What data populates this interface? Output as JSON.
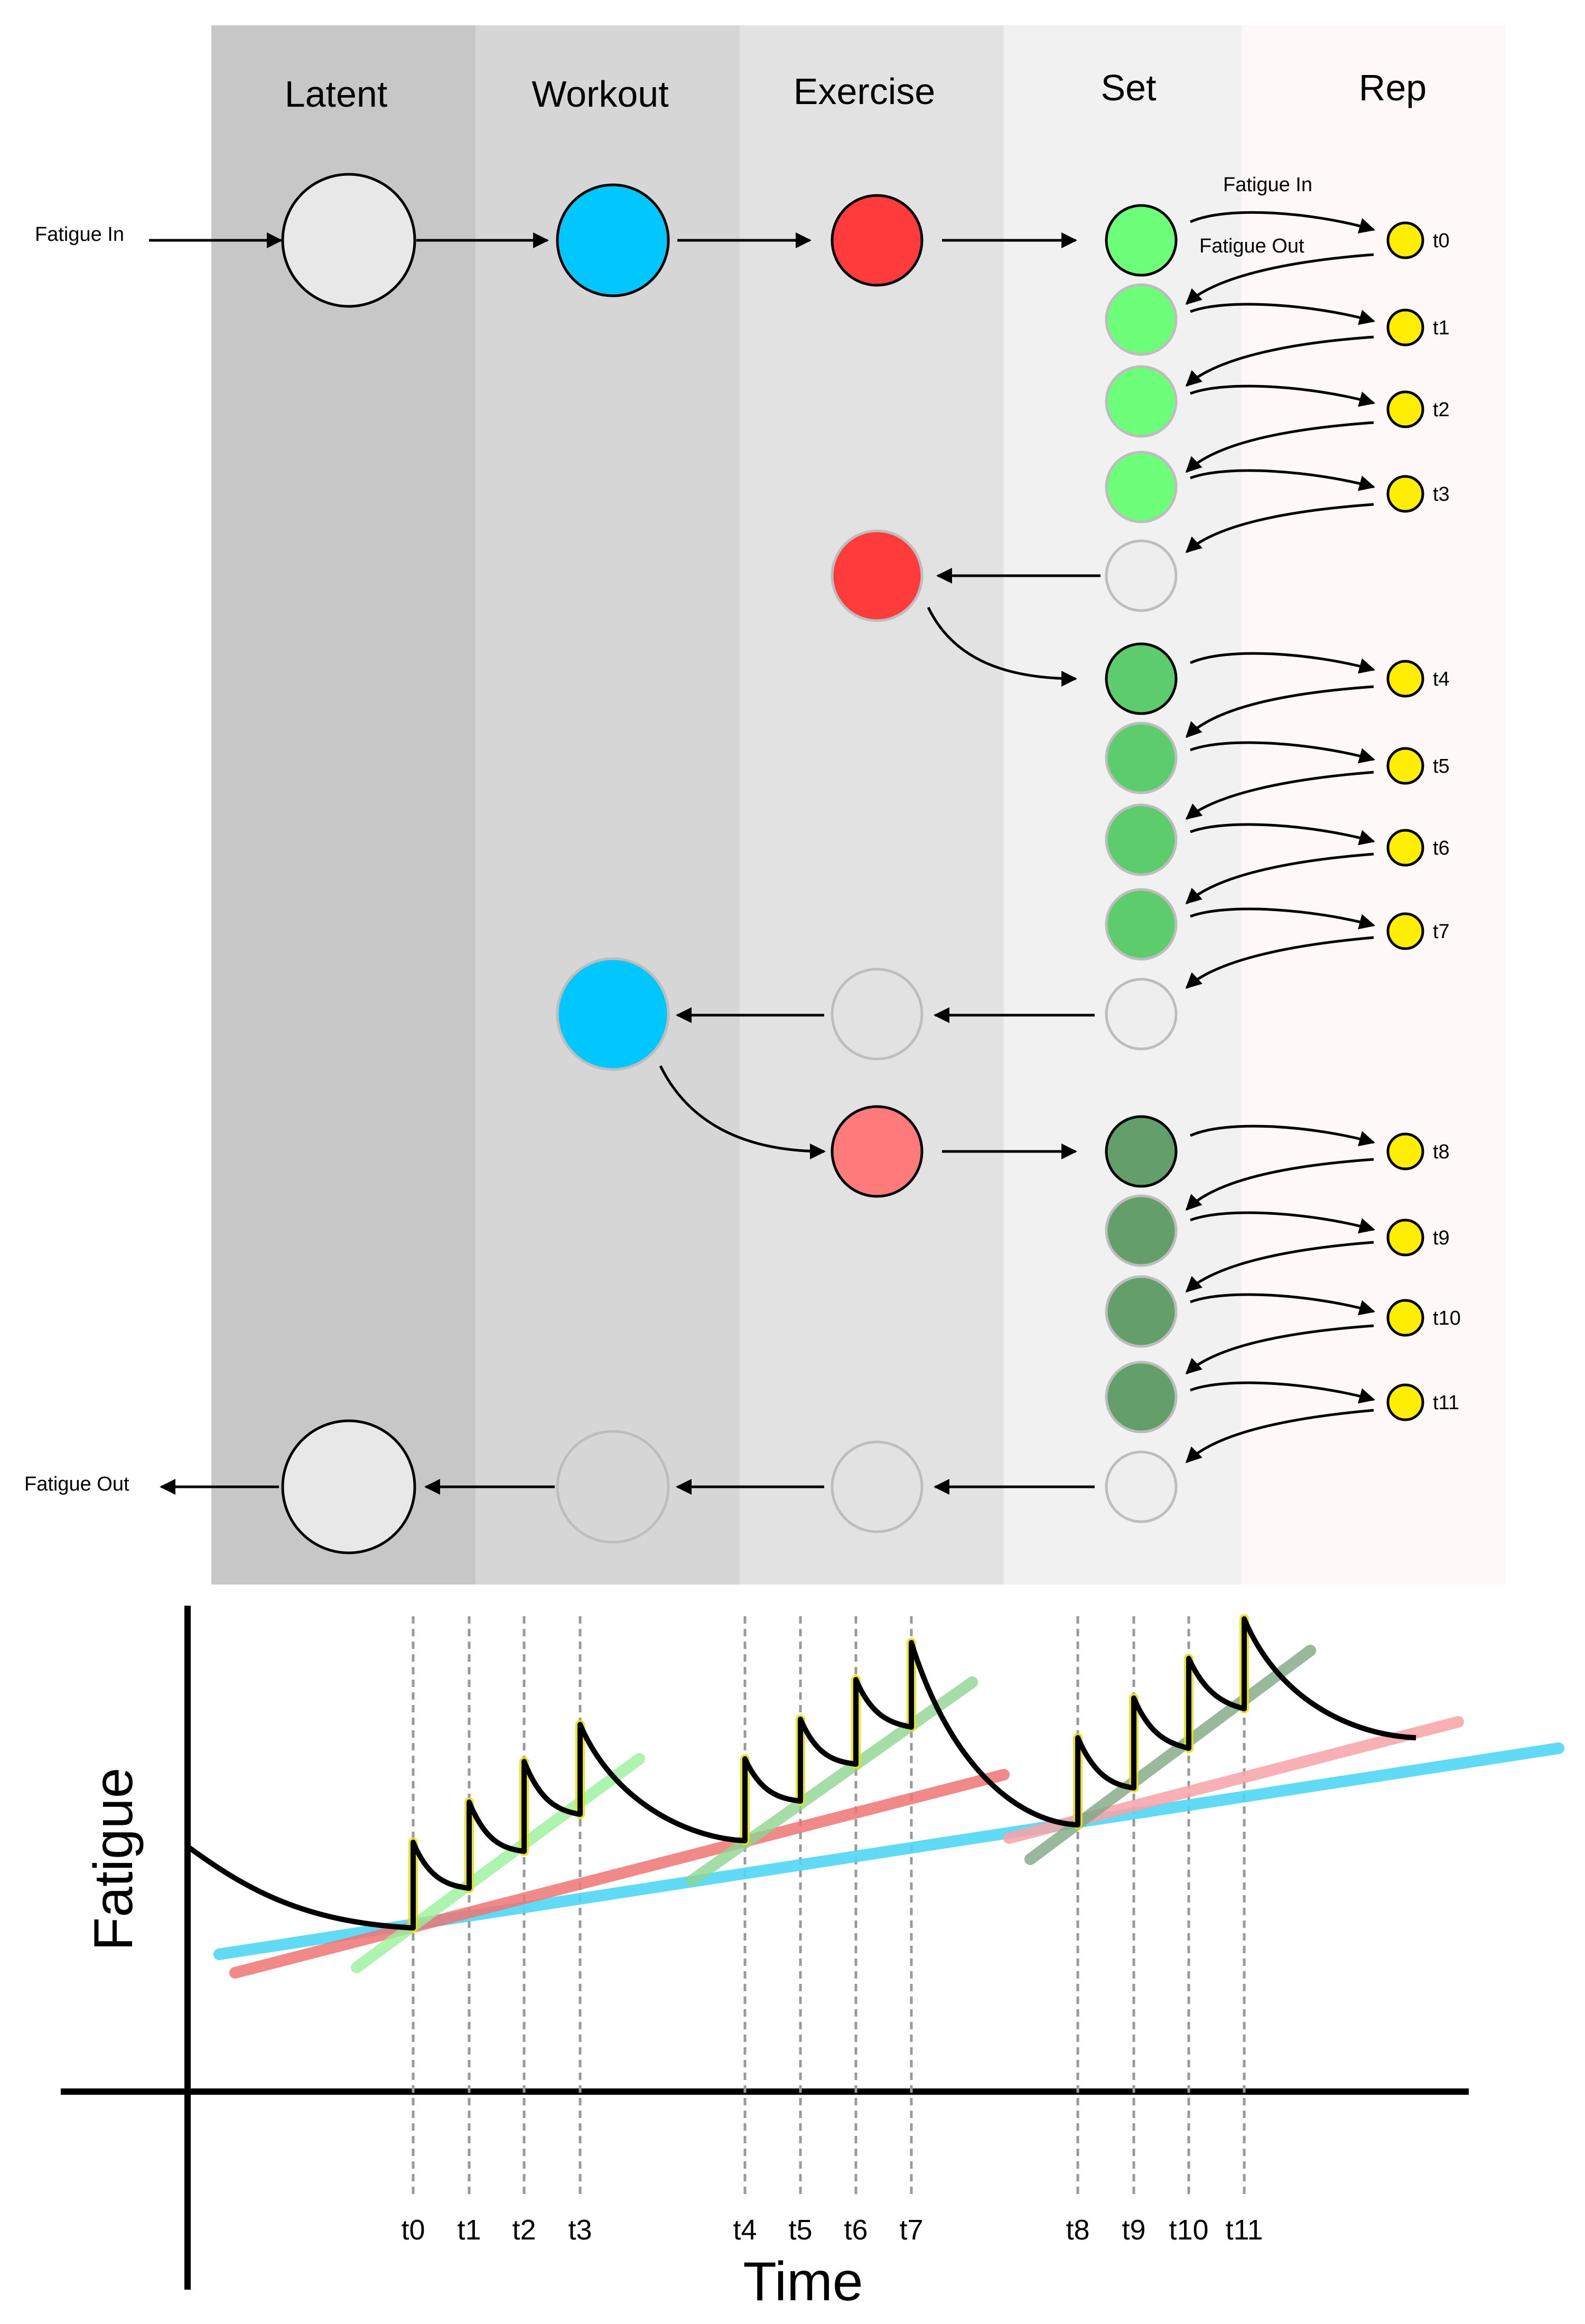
{
  "columns": [
    "Latent",
    "Workout",
    "Exercise",
    "Set",
    "Rep"
  ],
  "labels": {
    "fatigue_in": "Fatigue In",
    "fatigue_out": "Fatigue Out",
    "rep_fatigue_in": "Fatigue In",
    "rep_fatigue_out": "Fatigue Out"
  },
  "reps": [
    "t0",
    "t1",
    "t2",
    "t3",
    "t4",
    "t5",
    "t6",
    "t7",
    "t8",
    "t9",
    "t10",
    "t11"
  ],
  "colors": {
    "latent": "#e8e8e8",
    "workout": "#00c8ff",
    "exercise_1": "#ff3b3b",
    "exercise_3": "#ff7a7a",
    "set_group_1": "#6dff7a",
    "set_group_2": "#5ccc6c",
    "set_group_3": "#639e6b",
    "rep": "#ffee00",
    "empty": "#eeeeee",
    "trend_latent": "#4fd6f5",
    "trend_workout": "#f08080",
    "trend_set_1": "#99f29b",
    "trend_set_2": "#8ed691",
    "trend_set_3": "#7fa884"
  },
  "chart": {
    "ylabel": "Fatigue",
    "xlabel": "Time",
    "ticks": [
      "t0",
      "t1",
      "t2",
      "t3",
      "t4",
      "t5",
      "t6",
      "t7",
      "t8",
      "t9",
      "t10",
      "t11"
    ]
  }
}
